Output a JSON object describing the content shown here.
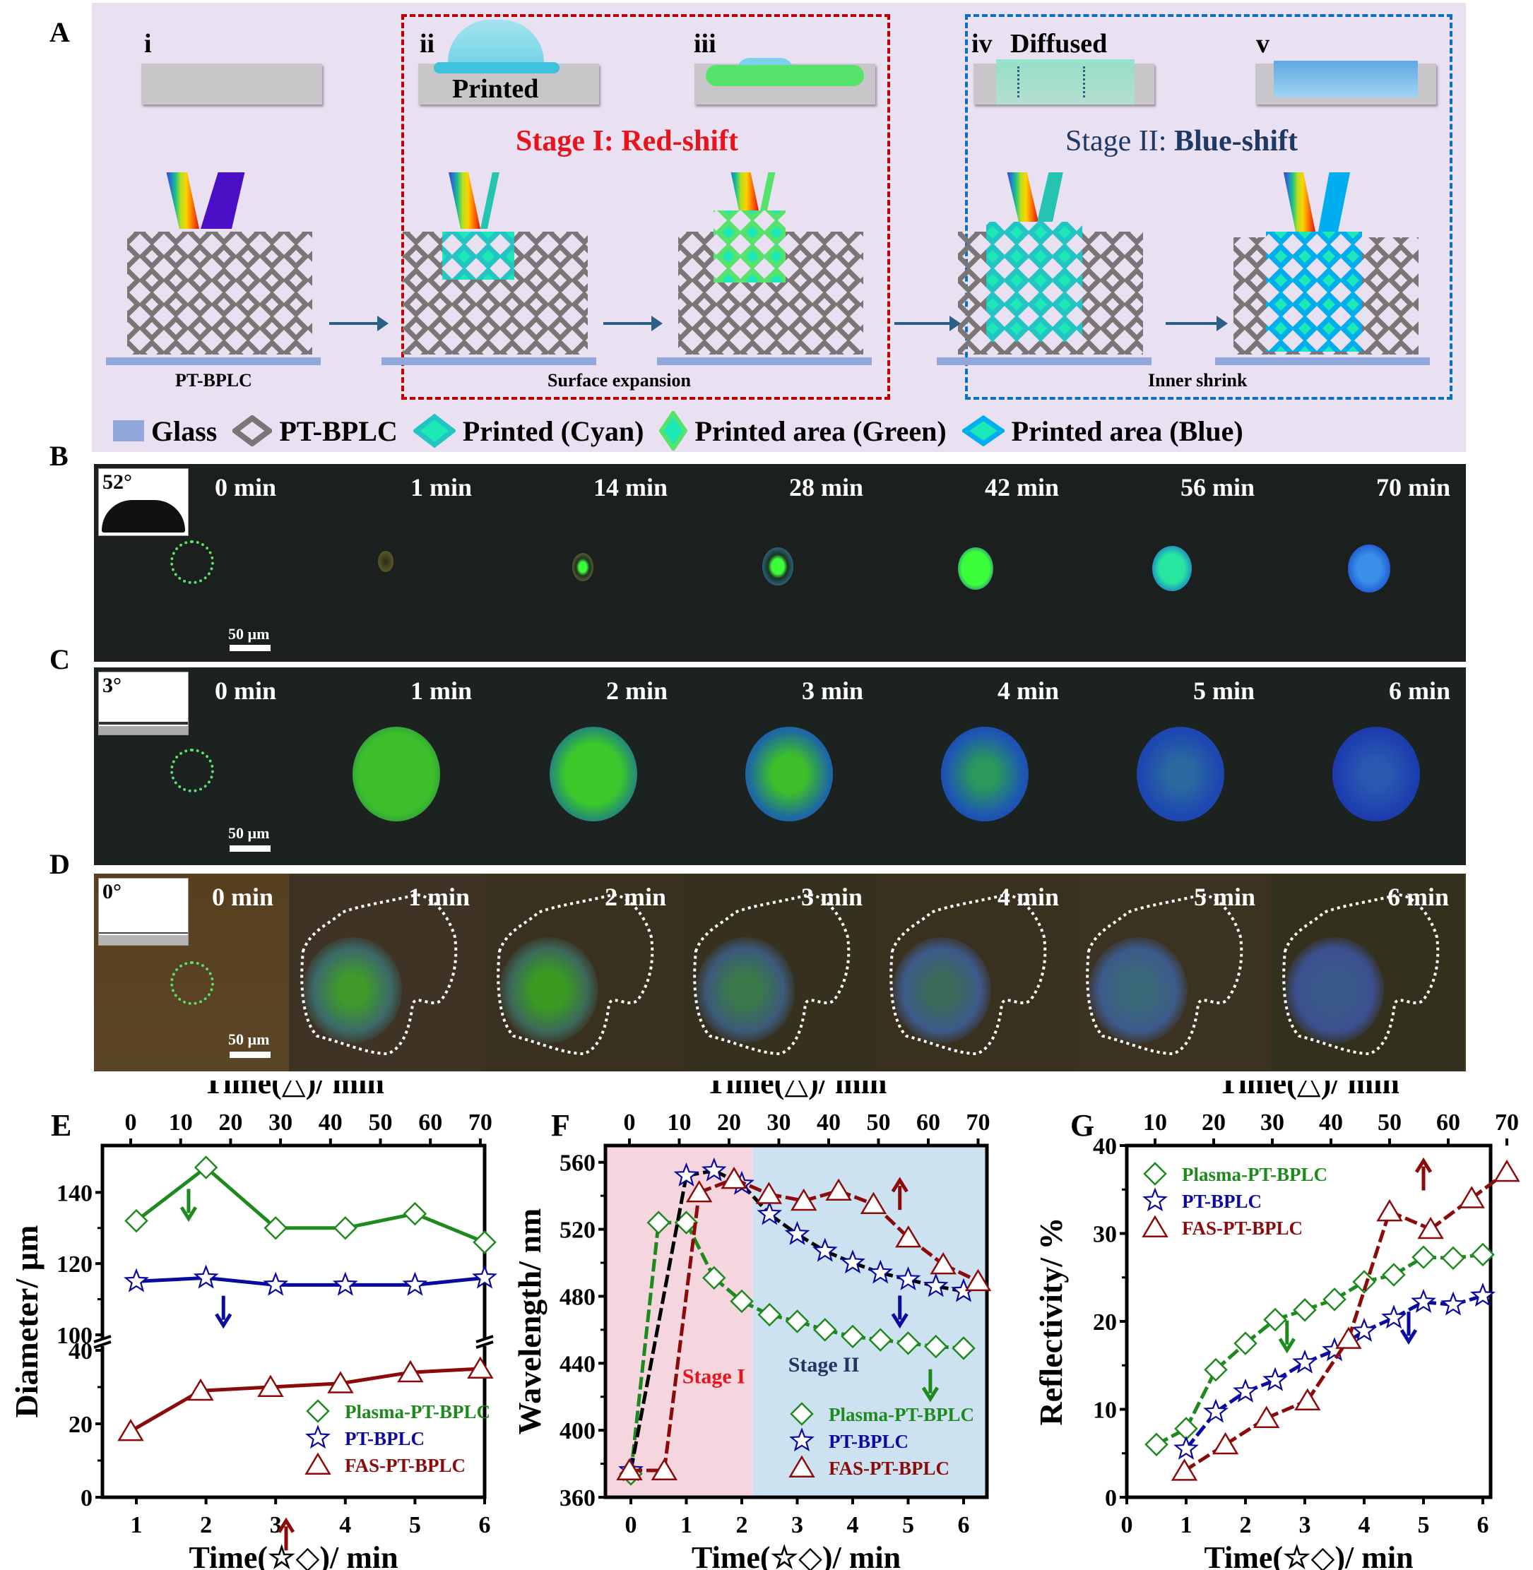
{
  "panel_letters": {
    "a": "A",
    "b": "B",
    "c": "C",
    "d": "D",
    "e": "E",
    "f": "F",
    "g": "G"
  },
  "panelA": {
    "steps": [
      {
        "numeral": "i",
        "label": ""
      },
      {
        "numeral": "ii",
        "label": "Printed"
      },
      {
        "numeral": "iii",
        "label": ""
      },
      {
        "numeral": "iv",
        "label": "Diffused"
      },
      {
        "numeral": "v",
        "label": ""
      }
    ],
    "stage1_title": "Stage I: Red-shift",
    "stage2_title_part1": "Stage II: ",
    "stage2_title_part2": "Blue-shift",
    "captions": {
      "pt_bplc": "PT-BPLC",
      "surface_expansion": "Surface expansion",
      "inner_shrink": "Inner shrink"
    },
    "legend": [
      {
        "label": "Glass",
        "icon": "glass-swatch-icon"
      },
      {
        "label": "PT-BPLC",
        "icon": "gray-diamond-icon"
      },
      {
        "label": "Printed (Cyan)",
        "icon": "cyan-diamond-icon"
      },
      {
        "label": "Printed area (Green)",
        "icon": "green-diamond-icon"
      },
      {
        "label": "Printed area (Blue)",
        "icon": "blue-diamond-icon"
      }
    ],
    "colors": {
      "stage1": "#e8141c",
      "stage1_box": "#c00000",
      "stage2": "#1f3864",
      "stage2_box": "#0b6fc2",
      "background": "#e9e1f2",
      "glass": "#92a7db",
      "lattice": "#7a7676",
      "cyan": "#1de9b6",
      "green": "#55e36b",
      "blue": "#00aeef",
      "reflect_violet": "#4b0fc6",
      "reflect_teal": "#24c4b1",
      "reflect_blue": "#00aeef"
    }
  },
  "panelB": {
    "contact_angle": "52°",
    "scale_bar": "50 µm",
    "times": [
      "0 min",
      "1 min",
      "14 min",
      "28 min",
      "42 min",
      "56 min",
      "70 min"
    ]
  },
  "panelC": {
    "contact_angle": "3°",
    "scale_bar": "50 µm",
    "times": [
      "0 min",
      "1 min",
      "2 min",
      "3 min",
      "4 min",
      "5 min",
      "6 min"
    ]
  },
  "panelD": {
    "contact_angle": "0°",
    "scale_bar": "50 µm",
    "times": [
      "0 min",
      "1 min",
      "2 min",
      "3 min",
      "4 min",
      "5 min",
      "6 min"
    ]
  },
  "chart_data": [
    {
      "id": "E",
      "type": "line",
      "ylabel": "Diameter/ µm",
      "xlabel_bottom": "Time(☆◇)/ min",
      "xlabel_top": "Time(△)/ min",
      "x_bottom_ticks": [
        1,
        2,
        3,
        4,
        5,
        6
      ],
      "x_top_ticks": [
        0,
        10,
        20,
        30,
        40,
        50,
        60,
        70
      ],
      "y_ticks_lower": [
        0,
        20,
        40
      ],
      "y_ticks_upper": [
        100,
        120,
        140
      ],
      "axis_break": [
        40,
        100
      ],
      "legend": [
        "Plasma-PT-BPLC",
        "PT-BPLC",
        "FAS-PT-BPLC"
      ],
      "legend_position": "bottom-right",
      "series": [
        {
          "name": "Plasma-PT-BPLC",
          "axis": "bottom",
          "marker": "diamond",
          "color": "#1e8a1e",
          "x": [
            1,
            2,
            3,
            4,
            5,
            6
          ],
          "y": [
            132,
            147,
            130,
            130,
            134,
            126
          ]
        },
        {
          "name": "PT-BPLC",
          "axis": "bottom",
          "marker": "star",
          "color": "#0a0aa0",
          "x": [
            1,
            2,
            3,
            4,
            5,
            6
          ],
          "y": [
            115,
            116,
            114,
            114,
            114,
            116
          ]
        },
        {
          "name": "FAS-PT-BPLC",
          "axis": "top",
          "marker": "triangle",
          "color": "#8b0a0a",
          "x": [
            0,
            14,
            28,
            42,
            56,
            70
          ],
          "y": [
            18,
            29,
            30,
            31,
            34,
            35
          ]
        }
      ],
      "arrows": [
        {
          "color": "#1e8a1e",
          "dir": "down"
        },
        {
          "color": "#0a0aa0",
          "dir": "down"
        },
        {
          "color": "#8b0a0a",
          "dir": "up"
        }
      ]
    },
    {
      "id": "F",
      "type": "line",
      "ylabel": "Wavelength/ nm",
      "xlabel_bottom": "Time(☆◇)/ min",
      "xlabel_top": "Time(△)/ min",
      "x_bottom_ticks": [
        0,
        1,
        2,
        3,
        4,
        5,
        6
      ],
      "x_top_ticks": [
        0,
        10,
        20,
        30,
        40,
        50,
        60,
        70
      ],
      "y_ticks": [
        360,
        400,
        440,
        480,
        520,
        560
      ],
      "ylim": [
        360,
        570
      ],
      "xlim_bottom": [
        -0.5,
        6.5
      ],
      "stage_regions": [
        {
          "label": "Stage I",
          "to_x": 2.2,
          "color": "#f5d6de",
          "label_color": "#e8141c"
        },
        {
          "label": "Stage II",
          "from_x": 2.2,
          "color": "#cde2f1",
          "label_color": "#1f3864"
        }
      ],
      "legend": [
        "Plasma-PT-BPLC",
        "PT-BPLC",
        "FAS-PT-BPLC"
      ],
      "legend_position": "bottom-right",
      "series": [
        {
          "name": "Plasma-PT-BPLC",
          "axis": "bottom",
          "marker": "diamond",
          "color": "#1e8a1e",
          "x": [
            0,
            0.5,
            1,
            1.5,
            2,
            2.5,
            3,
            3.5,
            4,
            4.5,
            5,
            5.5,
            6
          ],
          "y": [
            374,
            524,
            524,
            491,
            477,
            469,
            465,
            460,
            456,
            454,
            452,
            450,
            449
          ]
        },
        {
          "name": "PT-BPLC",
          "axis": "bottom",
          "marker": "star",
          "color": "#0a0aa0",
          "line_color": "#000000",
          "x": [
            0,
            1,
            1.5,
            2,
            2.5,
            3,
            3.5,
            4,
            4.5,
            5,
            5.5,
            6
          ],
          "y": [
            376,
            552,
            555,
            547,
            529,
            517,
            507,
            500,
            494,
            490,
            486,
            483
          ]
        },
        {
          "name": "FAS-PT-BPLC",
          "axis": "top",
          "marker": "triangle",
          "color": "#8b0a0a",
          "x": [
            0,
            7,
            14,
            21,
            28,
            35,
            42,
            49,
            56,
            63,
            70
          ],
          "y": [
            376,
            376,
            542,
            550,
            541,
            537,
            543,
            535,
            515,
            499,
            489
          ]
        }
      ],
      "arrows": [
        {
          "color": "#8b0a0a",
          "dir": "up"
        },
        {
          "color": "#0a0aa0",
          "dir": "down"
        },
        {
          "color": "#1e8a1e",
          "dir": "down"
        }
      ]
    },
    {
      "id": "G",
      "type": "line",
      "ylabel": "Reflectivity/ %",
      "xlabel_bottom": "Time(☆◇)/ min",
      "xlabel_top": "Time(△)/ min",
      "x_bottom_ticks": [
        0,
        1,
        2,
        3,
        4,
        5,
        6
      ],
      "x_top_ticks": [
        10,
        20,
        30,
        40,
        50,
        60,
        70
      ],
      "y_ticks": [
        0,
        10,
        20,
        30,
        40
      ],
      "ylim": [
        0,
        40
      ],
      "legend": [
        "Plasma-PT-BPLC",
        "PT-BPLC",
        "FAS-PT-BPLC"
      ],
      "legend_position": "top-left",
      "series": [
        {
          "name": "Plasma-PT-BPLC",
          "axis": "bottom",
          "marker": "diamond",
          "color": "#1e8a1e",
          "x": [
            0.5,
            1,
            1.5,
            2,
            2.5,
            3,
            3.5,
            4,
            4.5,
            5,
            5.5,
            6
          ],
          "y": [
            6,
            7.8,
            14.5,
            17.5,
            20.2,
            21.3,
            22.5,
            24.5,
            25.3,
            27.3,
            27.2,
            27.6
          ]
        },
        {
          "name": "PT-BPLC",
          "axis": "bottom",
          "marker": "star",
          "color": "#0a0aa0",
          "x": [
            1,
            1.5,
            2,
            2.5,
            3,
            3.5,
            4,
            4.5,
            5,
            5.5,
            6
          ],
          "y": [
            5.5,
            9.7,
            12,
            13.3,
            15.3,
            16.7,
            18.9,
            20.4,
            22.2,
            21.9,
            22.9
          ]
        },
        {
          "name": "FAS-PT-BPLC",
          "axis": "top",
          "marker": "triangle",
          "color": "#8b0a0a",
          "x": [
            15,
            22,
            29,
            36,
            43,
            50,
            57,
            64,
            70
          ],
          "y": [
            3,
            6,
            9,
            11,
            18,
            32.5,
            30.5,
            34,
            37
          ]
        }
      ],
      "arrows": [
        {
          "color": "#1e8a1e",
          "dir": "down"
        },
        {
          "color": "#0a0aa0",
          "dir": "down"
        },
        {
          "color": "#8b0a0a",
          "dir": "up"
        }
      ]
    }
  ]
}
